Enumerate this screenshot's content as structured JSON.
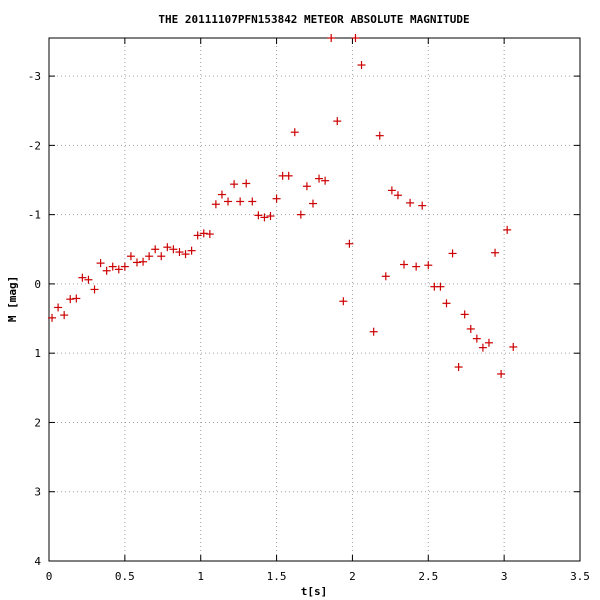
{
  "chart_data": {
    "type": "scatter",
    "title": "THE 20111107PFN153842 METEOR ABSOLUTE MAGNITUDE",
    "xlabel": "t[s]",
    "ylabel": "M [mag]",
    "xlim": [
      0,
      3.5
    ],
    "ylim": [
      4,
      -3.55
    ],
    "y_inverted": true,
    "grid": true,
    "x_ticks": [
      0,
      0.5,
      1,
      1.5,
      2,
      2.5,
      3,
      3.5
    ],
    "x_tick_labels": [
      "0",
      "0.5",
      "1",
      "1.5",
      "2",
      "2.5",
      "3",
      "3.5"
    ],
    "y_ticks": [
      -3,
      -2,
      -1,
      0,
      1,
      2,
      3,
      4
    ],
    "y_tick_labels": [
      "-3",
      "-2",
      "-1",
      "0",
      "1",
      "2",
      "3",
      "4"
    ],
    "marker_color": "#cc0000",
    "series": [
      {
        "x": [
          0.02,
          0.06,
          0.1,
          0.14,
          0.18,
          0.22,
          0.26,
          0.3,
          0.34,
          0.38,
          0.42,
          0.46,
          0.5,
          0.54,
          0.58,
          0.62,
          0.66,
          0.7,
          0.74,
          0.78,
          0.82,
          0.86,
          0.9,
          0.94,
          0.98,
          1.02,
          1.06,
          1.1,
          1.14,
          1.18,
          1.22,
          1.26,
          1.3,
          1.34,
          1.38,
          1.42,
          1.46,
          1.5,
          1.54,
          1.58,
          1.62,
          1.66,
          1.7,
          1.74,
          1.78,
          1.82,
          1.86,
          1.9,
          1.94,
          1.98,
          2.02,
          2.06,
          2.14,
          2.18,
          2.22,
          2.26,
          2.3,
          2.34,
          2.38,
          2.42,
          2.46,
          2.5,
          2.54,
          2.58,
          2.62,
          2.66,
          2.7,
          2.74,
          2.78,
          2.82,
          2.86,
          2.9,
          2.94,
          2.98,
          3.02,
          3.06
        ],
        "y": [
          0.49,
          0.34,
          0.45,
          0.22,
          0.21,
          -0.09,
          -0.06,
          0.08,
          -0.3,
          -0.19,
          -0.25,
          -0.21,
          -0.25,
          -0.4,
          -0.31,
          -0.32,
          -0.4,
          -0.5,
          -0.4,
          -0.53,
          -0.5,
          -0.46,
          -0.43,
          -0.48,
          -0.7,
          -0.73,
          -0.72,
          -1.15,
          -1.29,
          -1.19,
          -1.44,
          -1.19,
          -1.45,
          -1.19,
          -0.99,
          -0.96,
          -0.98,
          -1.23,
          -1.56,
          -1.56,
          -2.19,
          -1.0,
          -1.41,
          -1.16,
          -1.52,
          -1.49,
          -3.55,
          -2.35,
          0.25,
          -0.58,
          -3.55,
          -3.16,
          0.69,
          -2.14,
          -0.11,
          -1.35,
          -1.28,
          -0.28,
          -1.17,
          -0.25,
          -1.13,
          -0.27,
          0.04,
          0.04,
          0.28,
          -0.44,
          1.2,
          0.44,
          0.65,
          0.79,
          0.92,
          0.85,
          -0.45,
          1.3,
          -0.78,
          0.91
        ]
      }
    ]
  }
}
